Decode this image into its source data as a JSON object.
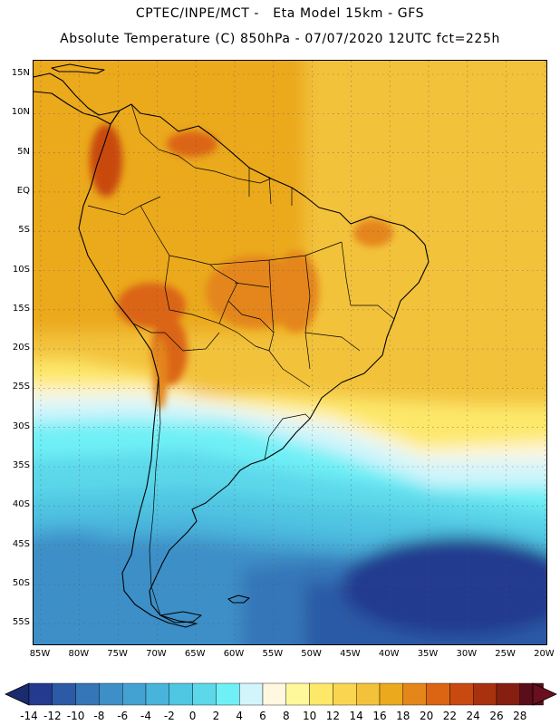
{
  "header": {
    "title_line1": "CPTEC/INPE/MCT -   Eta Model 15km - GFS",
    "title_line2": "Absolute Temperature (C) 850hPa - 07/07/2020 12UTC fct=225h"
  },
  "axes": {
    "lat_labels": [
      "15N",
      "10N",
      "5N",
      "EQ",
      "5S",
      "10S",
      "15S",
      "20S",
      "25S",
      "30S",
      "35S",
      "40S",
      "45S",
      "50S",
      "55S"
    ],
    "lon_labels": [
      "85W",
      "80W",
      "75W",
      "70W",
      "65W",
      "60W",
      "55W",
      "50W",
      "45W",
      "40W",
      "35W",
      "30W",
      "25W",
      "20W"
    ],
    "lat_range": [
      17,
      -58.5
    ],
    "lon_range": [
      -86.5,
      -20
    ]
  },
  "colorbar": {
    "labels": [
      "-14",
      "-12",
      "-10",
      "-8",
      "-6",
      "-4",
      "-2",
      "0",
      "2",
      "4",
      "6",
      "8",
      "10",
      "12",
      "14",
      "16",
      "18",
      "20",
      "22",
      "24",
      "26",
      "28"
    ],
    "colors": [
      "#243a8e",
      "#2c5aa6",
      "#3576b8",
      "#3e8fc7",
      "#44a2d2",
      "#48b4db",
      "#4fc6e2",
      "#5cd8ea",
      "#6ff0f6",
      "#d2f4fb",
      "#fff7e0",
      "#fff89a",
      "#fde86a",
      "#fad54f",
      "#f3c23a",
      "#eba91d",
      "#e4861a",
      "#db6512",
      "#c94a10",
      "#a8320e",
      "#861f12",
      "#5a0d1a"
    ],
    "under_color": "#1b2b6e",
    "over_color": "#6a0f1e"
  }
}
